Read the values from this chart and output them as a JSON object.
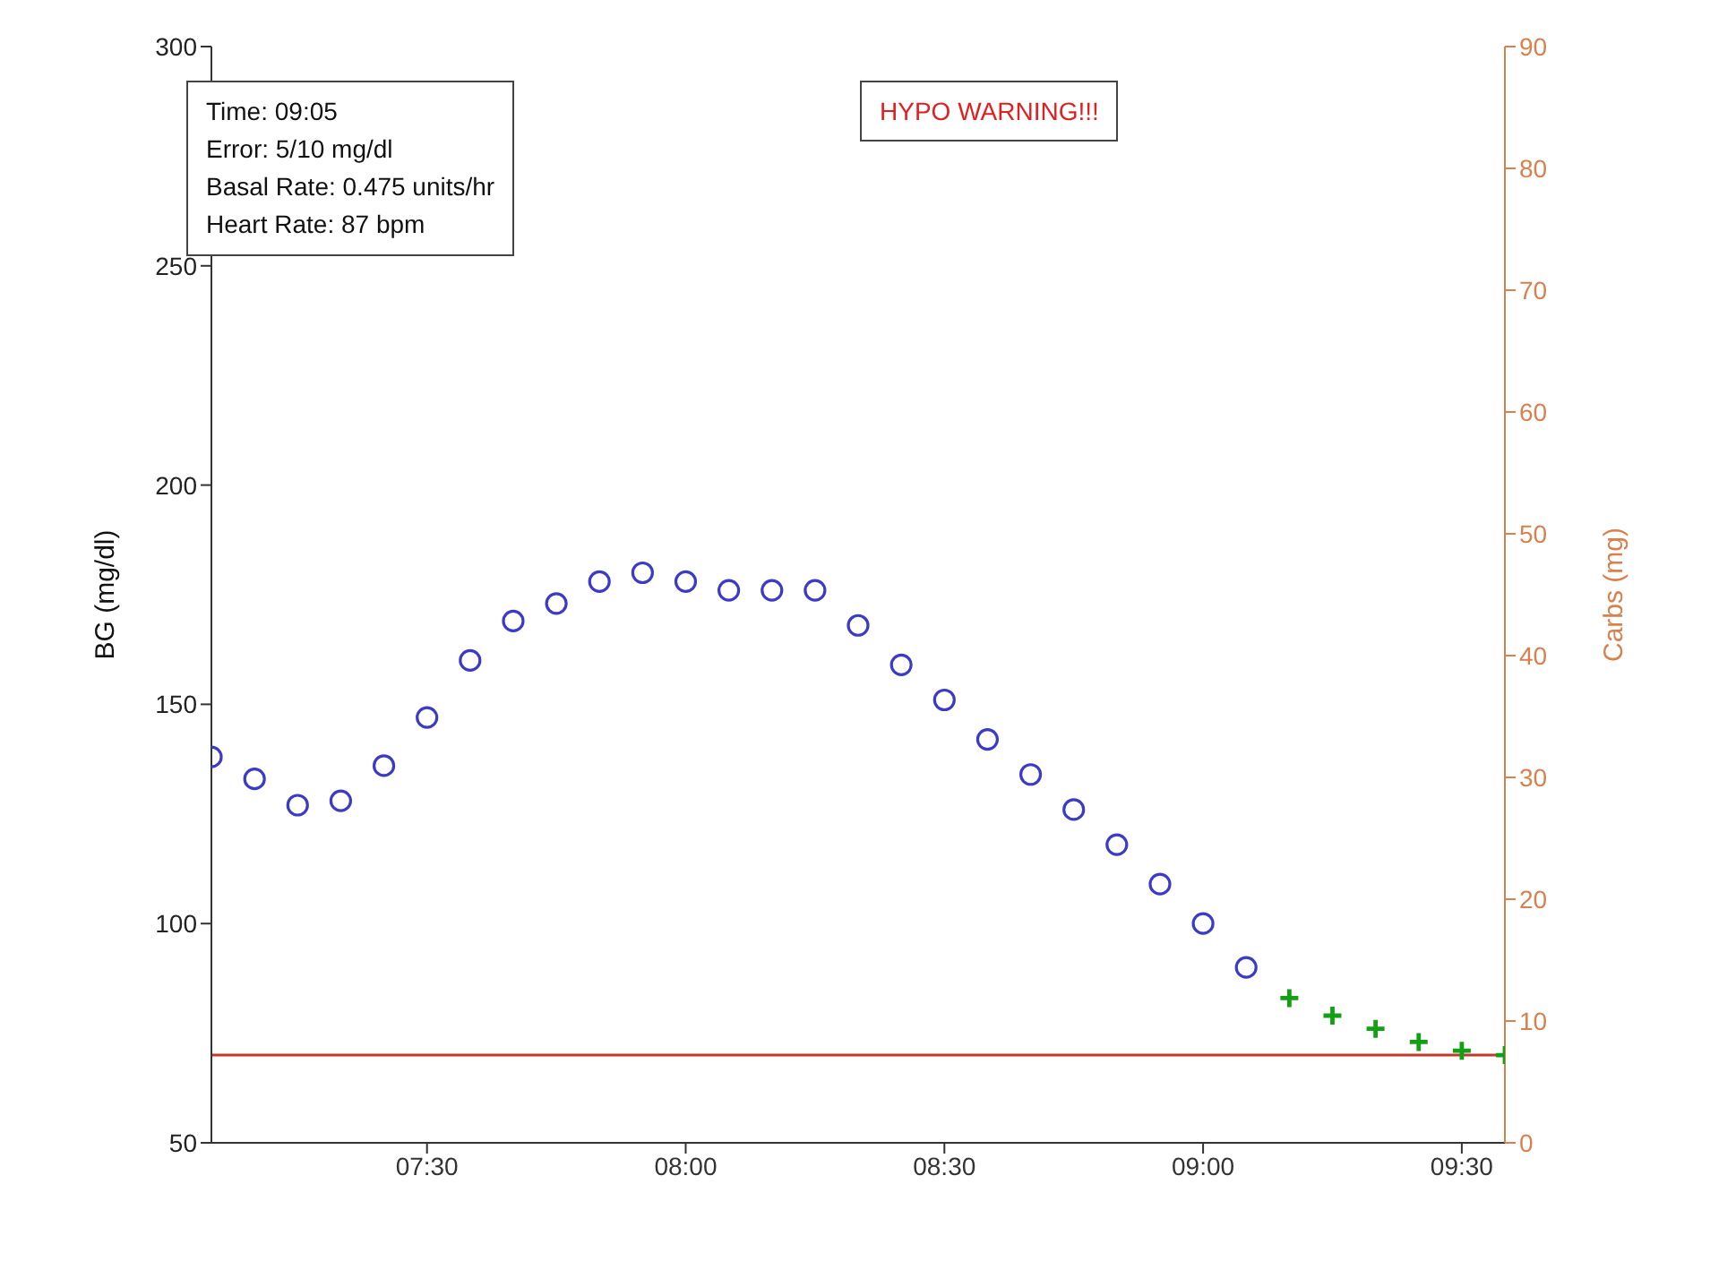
{
  "chart_data": {
    "type": "scatter",
    "ylabel": "BG (mg/dl)",
    "y2label": "Carbs (mg)",
    "xlim": [
      7.0833,
      9.5833
    ],
    "xticks": [
      {
        "value": 7.5,
        "label": "07:30"
      },
      {
        "value": 8,
        "label": "08:00"
      },
      {
        "value": 8.5,
        "label": "08:30"
      },
      {
        "value": 9,
        "label": "09:00"
      },
      {
        "value": 9.5,
        "label": "09:30"
      }
    ],
    "ylim": [
      50,
      300
    ],
    "yticks": [
      50,
      100,
      150,
      200,
      250,
      300
    ],
    "y2lim": [
      0,
      90
    ],
    "y2ticks": [
      0,
      10,
      20,
      30,
      40,
      50,
      60,
      70,
      80,
      90
    ],
    "series": [
      {
        "marker": "circle",
        "color": "#3b3bc8",
        "x": [
          7.0833,
          7.1667,
          7.25,
          7.3333,
          7.4167,
          7.5,
          7.5833,
          7.6667,
          7.75,
          7.8333,
          7.9167,
          8,
          8.0833,
          8.1667,
          8.25,
          8.3333,
          8.4167,
          8.5,
          8.5833,
          8.6667,
          8.75,
          8.8333,
          8.9167,
          9,
          9.0833
        ],
        "values": [
          138,
          133,
          127,
          128,
          136,
          147,
          160,
          169,
          173,
          178,
          180,
          178,
          176,
          176,
          176,
          168,
          159,
          151,
          142,
          134,
          126,
          118,
          109,
          100,
          90
        ]
      },
      {
        "marker": "cross",
        "color": "#14a014",
        "x": [
          9.1667,
          9.25,
          9.3333,
          9.4167,
          9.5,
          9.5833
        ],
        "values": [
          83,
          79,
          76,
          73,
          71,
          70
        ]
      }
    ],
    "ref_lines": [
      {
        "axis": "y",
        "value": 70,
        "color": "#c0392b"
      }
    ],
    "annotations": [
      "Time: 09:05\nError: 5/10 mg/dl\nBasal Rate: 0.475 units/hr\nHeart Rate: 87 bpm",
      "HYPO WARNING!!!"
    ],
    "grid": false
  }
}
